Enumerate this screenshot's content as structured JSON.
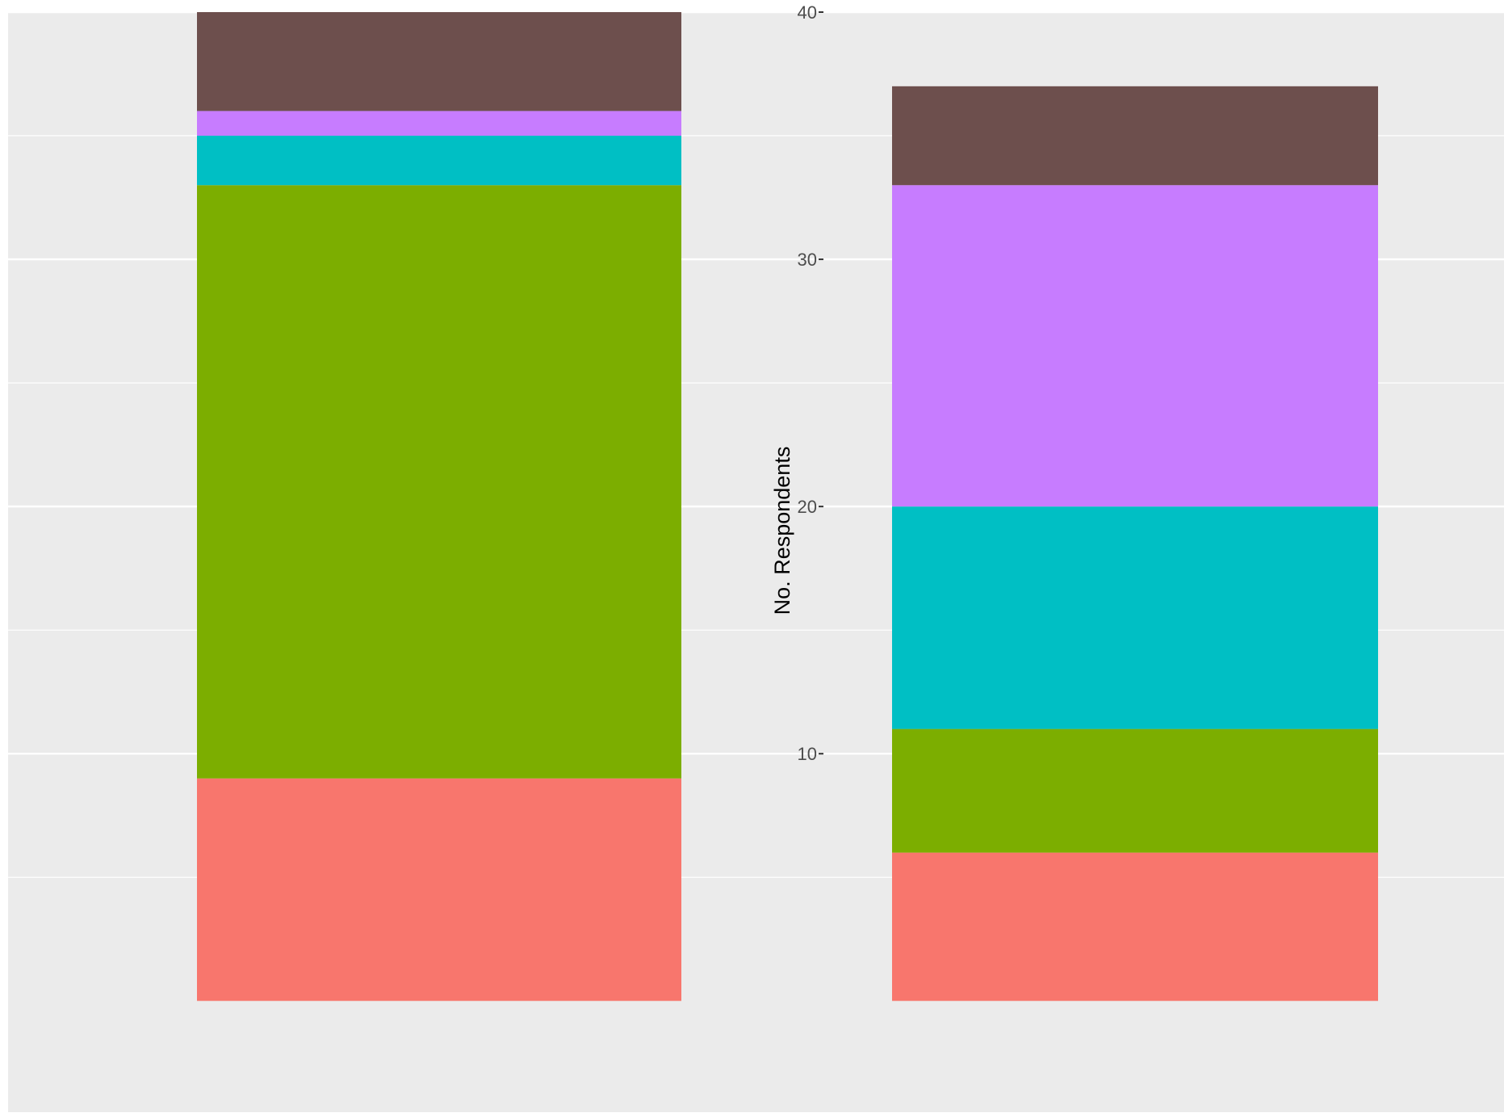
{
  "chart_data": {
    "type": "bar",
    "stacked": true,
    "categories": [
      "",
      ""
    ],
    "series": [
      {
        "color": "#F8766D",
        "values": [
          9,
          6
        ]
      },
      {
        "color": "#7CAE00",
        "values": [
          24,
          5
        ]
      },
      {
        "color": "#00BFC4",
        "values": [
          2,
          9
        ]
      },
      {
        "color": "#C77CFF",
        "values": [
          1,
          13
        ]
      },
      {
        "color": "#6D4F4D",
        "values": [
          4,
          4
        ]
      }
    ],
    "ylabel": "No. Respondents",
    "ylim": [
      -4.5,
      40
    ],
    "y_ticks": [
      {
        "value": 10,
        "label": "10"
      },
      {
        "value": 20,
        "label": "20"
      },
      {
        "value": 30,
        "label": "30"
      },
      {
        "value": 40,
        "label": "40"
      }
    ],
    "grid": true,
    "panel_background": "#EBEBEB",
    "gridline_color": "#FFFFFF"
  }
}
